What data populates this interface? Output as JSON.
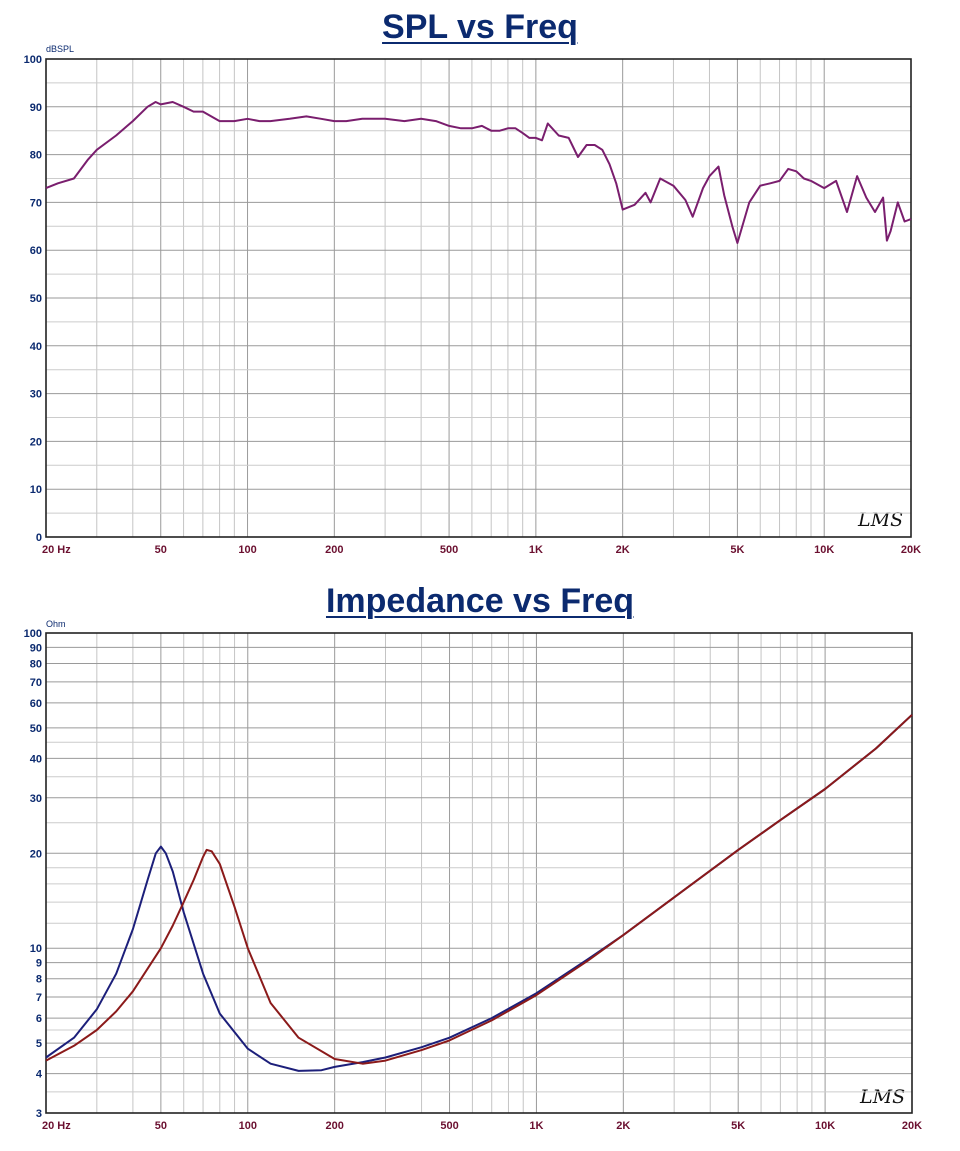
{
  "charts": [
    {
      "title": "SPL vs Freq",
      "unit_label": "dBSPL",
      "watermark": "LMS",
      "x_ticks": [
        "20 Hz",
        "50",
        "100",
        "200",
        "500",
        "1K",
        "2K",
        "5K",
        "10K",
        "20K"
      ],
      "y_ticks": [
        "100",
        "90",
        "80",
        "70",
        "60",
        "50",
        "40",
        "30",
        "20",
        "10",
        "0"
      ],
      "line_color": "#7a1e6e"
    },
    {
      "title": "Impedance vs Freq",
      "unit_label": "Ohm",
      "watermark": "LMS",
      "x_ticks": [
        "20 Hz",
        "50",
        "100",
        "200",
        "500",
        "1K",
        "2K",
        "5K",
        "10K",
        "20K"
      ],
      "y_ticks": [
        "100",
        "90",
        "80",
        "70",
        "60",
        "50",
        "40",
        "30",
        "20",
        "10",
        "9",
        "8",
        "7",
        "6",
        "5",
        "4",
        "3"
      ],
      "line_colors": [
        "#1c1f7a",
        "#8b1a1a"
      ]
    }
  ],
  "chart_data": [
    {
      "type": "line",
      "title": "SPL vs Freq",
      "xlabel": "",
      "ylabel": "dBSPL",
      "x_scale": "log",
      "xlim": [
        20,
        20000
      ],
      "ylim": [
        0,
        100
      ],
      "grid": true,
      "series": [
        {
          "x": [
            20,
            22,
            25,
            28,
            30,
            35,
            40,
            45,
            48,
            50,
            55,
            60,
            65,
            70,
            80,
            90,
            100,
            110,
            120,
            140,
            160,
            180,
            200,
            220,
            250,
            300,
            350,
            400,
            450,
            500,
            550,
            600,
            650,
            700,
            750,
            800,
            850,
            900,
            950,
            1000,
            1050,
            1100,
            1200,
            1300,
            1400,
            1500,
            1600,
            1700,
            1800,
            1900,
            2000,
            2200,
            2400,
            2500,
            2700,
            3000,
            3300,
            3500,
            3800,
            4000,
            4300,
            4500,
            4800,
            5000,
            5500,
            6000,
            6500,
            7000,
            7500,
            8000,
            8500,
            9000,
            10000,
            11000,
            12000,
            13000,
            14000,
            15000,
            16000,
            16500,
            17000,
            18000,
            19000,
            20000
          ],
          "y": [
            73,
            74,
            75,
            79,
            81,
            84,
            87,
            90,
            91,
            90.5,
            91,
            90,
            89,
            89,
            87,
            87,
            87.5,
            87,
            87,
            87.5,
            88,
            87.5,
            87,
            87,
            87.5,
            87.5,
            87,
            87.5,
            87,
            86,
            85.5,
            85.5,
            86,
            85,
            85,
            85.5,
            85.5,
            84.5,
            83.5,
            83.5,
            83,
            86.5,
            84,
            83.5,
            79.5,
            82,
            82,
            81,
            78,
            74,
            68.5,
            69.5,
            72,
            70,
            75,
            73.5,
            70.5,
            67,
            73,
            75.5,
            77.5,
            71.5,
            65,
            61.5,
            70,
            73.5,
            74,
            74.5,
            77,
            76.5,
            75,
            74.5,
            73,
            74.5,
            68,
            75.5,
            71,
            68,
            71,
            62,
            64,
            70,
            66,
            66.5
          ]
        }
      ]
    },
    {
      "type": "line",
      "title": "Impedance vs Freq",
      "xlabel": "",
      "ylabel": "Ohm",
      "x_scale": "log",
      "y_scale": "log",
      "xlim": [
        20,
        20000
      ],
      "ylim": [
        3,
        100
      ],
      "grid": true,
      "series": [
        {
          "x": [
            20,
            25,
            30,
            35,
            40,
            45,
            48,
            50,
            52,
            55,
            60,
            70,
            80,
            100,
            120,
            150,
            180,
            200,
            250,
            300,
            400,
            500,
            700,
            1000,
            1500,
            2000,
            3000,
            5000,
            7000,
            10000,
            15000,
            20000
          ],
          "y": [
            4.5,
            5.2,
            6.4,
            8.3,
            11.5,
            16.5,
            20,
            21,
            20,
            17.5,
            13,
            8.3,
            6.2,
            4.8,
            4.3,
            4.08,
            4.1,
            4.2,
            4.35,
            4.5,
            4.85,
            5.2,
            6.0,
            7.2,
            9.2,
            11,
            14.5,
            20.5,
            25.5,
            32,
            43,
            55
          ]
        },
        {
          "x": [
            20,
            25,
            30,
            35,
            40,
            50,
            55,
            60,
            65,
            70,
            72,
            75,
            80,
            90,
            100,
            120,
            150,
            200,
            250,
            300,
            400,
            500,
            700,
            1000,
            1500,
            2000,
            3000,
            5000,
            7000,
            10000,
            15000,
            20000
          ],
          "y": [
            4.4,
            4.9,
            5.5,
            6.3,
            7.3,
            10,
            11.8,
            14,
            16.5,
            19.5,
            20.5,
            20.3,
            18.5,
            13.5,
            10,
            6.7,
            5.2,
            4.45,
            4.3,
            4.4,
            4.75,
            5.1,
            5.9,
            7.1,
            9.1,
            11,
            14.5,
            20.5,
            25.5,
            32,
            43,
            55
          ]
        }
      ]
    }
  ]
}
